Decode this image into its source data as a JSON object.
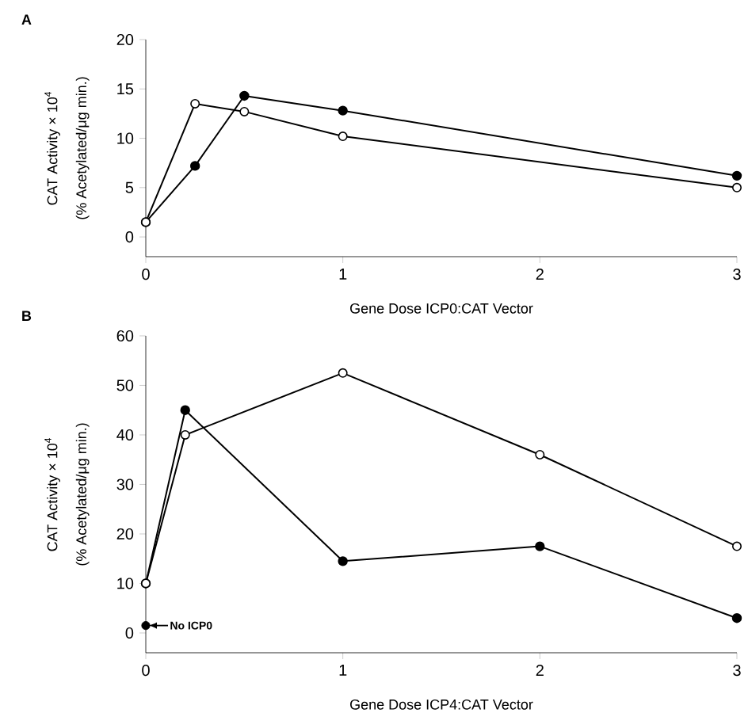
{
  "chart_data": [
    {
      "type": "line",
      "title": "A",
      "xlabel": "Gene Dose ICP0:CAT Vector",
      "ylabel": "CAT Activity × 10$^{4}$",
      "annotations": [
        "(% Acetylated/μg min.)"
      ],
      "x": [
        0,
        0.25,
        0.5,
        1,
        3
      ],
      "series": [
        {
          "color": "#000000",
          "values": [
            1.5,
            7.2,
            14.3,
            12.8,
            6.2
          ]
        },
        {
          "color": "#000000",
          "values": [
            1.5,
            13.5,
            12.7,
            10.2,
            5
          ]
        }
      ],
      "xlim": [
        0,
        3
      ],
      "xticks": [
        0,
        1,
        2,
        3
      ],
      "ylim": [
        -2,
        20
      ],
      "yticks": [
        0,
        5,
        10,
        15,
        20
      ],
      "marker": "circle",
      "line_style": "solid"
    },
    {
      "type": "line",
      "title": "B",
      "xlabel": "Gene Dose ICP4:CAT Vector",
      "ylabel": "CAT Activity × 10$^{4}$",
      "annotations": [
        "(% Acetylated/μg min.)",
        {
          "text": "No ICP0",
          "x": 0,
          "y": 1.5
        }
      ],
      "x": [
        0,
        0.2,
        1,
        2,
        3
      ],
      "series": [
        {
          "color": "#000000",
          "values": [
            10,
            45,
            14.5,
            17.5,
            3
          ]
        },
        {
          "color": "#000000",
          "values": [
            10,
            40,
            52.5,
            36,
            17.5
          ]
        },
        {
          "type": "scatter",
          "color": "#000000",
          "x": [
            0
          ],
          "values": [
            1.5
          ]
        }
      ],
      "xlim": [
        0,
        3
      ],
      "xticks": [
        0,
        1,
        2,
        3
      ],
      "ylim": [
        -4,
        60
      ],
      "yticks": [
        0,
        10,
        20,
        30,
        40,
        50,
        60
      ],
      "marker": "circle",
      "line_style": "solid"
    }
  ]
}
